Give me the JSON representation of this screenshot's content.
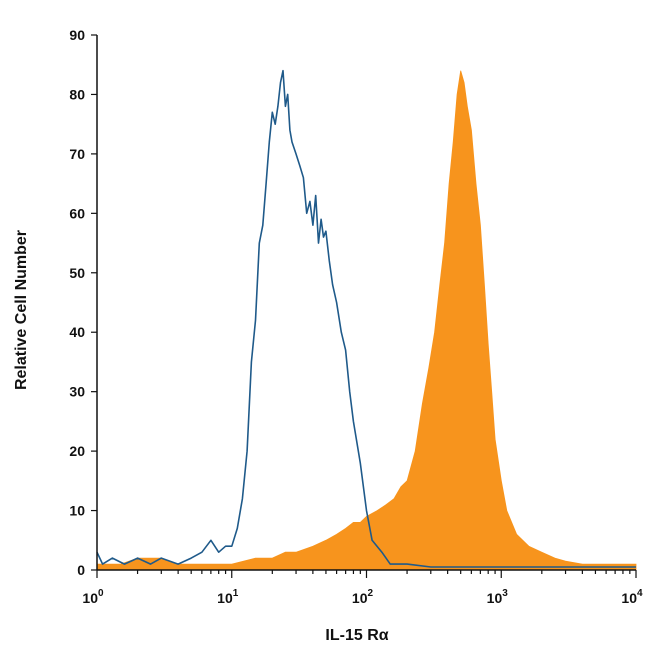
{
  "chart_data": {
    "type": "area",
    "title": "",
    "xlabel": "IL-15 Rα",
    "ylabel": "Relative Cell Number",
    "x_scale": "log",
    "xlim": [
      1,
      10000
    ],
    "ylim": [
      0,
      90
    ],
    "x_ticks": [
      {
        "value": 1,
        "base": "10",
        "exp": "0"
      },
      {
        "value": 10,
        "base": "10",
        "exp": "1"
      },
      {
        "value": 100,
        "base": "10",
        "exp": "2"
      },
      {
        "value": 1000,
        "base": "10",
        "exp": "3"
      },
      {
        "value": 10000,
        "base": "10",
        "exp": "4"
      }
    ],
    "y_ticks": [
      0,
      10,
      20,
      30,
      40,
      50,
      60,
      70,
      80,
      90
    ],
    "grid": false,
    "legend": "none",
    "series": [
      {
        "style": "outline",
        "color": "#1f5a8a",
        "points": [
          [
            1,
            3
          ],
          [
            1.1,
            1
          ],
          [
            1.3,
            2
          ],
          [
            1.6,
            1
          ],
          [
            2,
            2
          ],
          [
            2.5,
            1
          ],
          [
            3,
            2
          ],
          [
            4,
            1
          ],
          [
            5,
            2
          ],
          [
            6,
            3
          ],
          [
            7,
            5
          ],
          [
            8,
            3
          ],
          [
            9,
            4
          ],
          [
            10,
            4
          ],
          [
            11,
            7
          ],
          [
            12,
            12
          ],
          [
            13,
            20
          ],
          [
            14,
            35
          ],
          [
            15,
            42
          ],
          [
            16,
            55
          ],
          [
            17,
            58
          ],
          [
            18,
            65
          ],
          [
            19,
            72
          ],
          [
            20,
            77
          ],
          [
            21,
            75
          ],
          [
            22,
            78
          ],
          [
            23,
            82
          ],
          [
            24,
            84
          ],
          [
            25,
            78
          ],
          [
            26,
            80
          ],
          [
            27,
            74
          ],
          [
            28,
            72
          ],
          [
            30,
            70
          ],
          [
            32,
            68
          ],
          [
            34,
            66
          ],
          [
            36,
            60
          ],
          [
            38,
            62
          ],
          [
            40,
            58
          ],
          [
            42,
            63
          ],
          [
            44,
            55
          ],
          [
            46,
            59
          ],
          [
            48,
            56
          ],
          [
            50,
            57
          ],
          [
            53,
            52
          ],
          [
            56,
            48
          ],
          [
            60,
            45
          ],
          [
            65,
            40
          ],
          [
            70,
            37
          ],
          [
            75,
            30
          ],
          [
            80,
            25
          ],
          [
            90,
            18
          ],
          [
            100,
            10
          ],
          [
            110,
            5
          ],
          [
            130,
            3
          ],
          [
            150,
            1
          ],
          [
            200,
            1
          ],
          [
            300,
            0.5
          ],
          [
            1000,
            0.5
          ],
          [
            3000,
            0.5
          ],
          [
            10000,
            0.5
          ]
        ]
      },
      {
        "style": "filled",
        "color": "#f7941d",
        "points": [
          [
            1,
            1
          ],
          [
            1.5,
            1
          ],
          [
            2,
            2
          ],
          [
            3,
            2
          ],
          [
            4,
            1
          ],
          [
            5,
            1
          ],
          [
            7,
            1
          ],
          [
            10,
            1
          ],
          [
            15,
            2
          ],
          [
            20,
            2
          ],
          [
            25,
            3
          ],
          [
            30,
            3
          ],
          [
            40,
            4
          ],
          [
            50,
            5
          ],
          [
            60,
            6
          ],
          [
            70,
            7
          ],
          [
            80,
            8
          ],
          [
            90,
            8
          ],
          [
            100,
            9
          ],
          [
            120,
            10
          ],
          [
            140,
            11
          ],
          [
            160,
            12
          ],
          [
            180,
            14
          ],
          [
            200,
            15
          ],
          [
            230,
            20
          ],
          [
            260,
            28
          ],
          [
            290,
            34
          ],
          [
            320,
            40
          ],
          [
            350,
            48
          ],
          [
            380,
            55
          ],
          [
            410,
            65
          ],
          [
            440,
            72
          ],
          [
            470,
            80
          ],
          [
            500,
            84
          ],
          [
            530,
            82
          ],
          [
            560,
            78
          ],
          [
            600,
            74
          ],
          [
            650,
            65
          ],
          [
            700,
            58
          ],
          [
            750,
            48
          ],
          [
            800,
            38
          ],
          [
            850,
            30
          ],
          [
            900,
            22
          ],
          [
            1000,
            15
          ],
          [
            1100,
            10
          ],
          [
            1300,
            6
          ],
          [
            1600,
            4
          ],
          [
            2000,
            3
          ],
          [
            2500,
            2
          ],
          [
            3000,
            1.5
          ],
          [
            4000,
            1
          ],
          [
            6000,
            1
          ],
          [
            10000,
            1
          ]
        ]
      }
    ]
  }
}
